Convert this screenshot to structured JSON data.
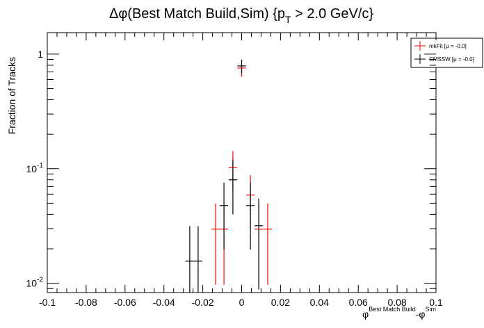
{
  "chart_data": {
    "type": "errorbar",
    "title": [
      "Δφ(Best Match Build,Sim) {p",
      "T",
      " > 2.0 GeV/c}"
    ],
    "x_label": [
      "φ",
      "Best Match Build",
      "-φ",
      "Sim"
    ],
    "y_label": "Fraction of Tracks",
    "xlim": [
      -0.1,
      0.1
    ],
    "xticks": [
      -0.1,
      -0.08,
      -0.06,
      -0.04,
      -0.02,
      0,
      0.02,
      0.04,
      0.06,
      0.08,
      0.1
    ],
    "ylim": [
      0.0083,
      1.54
    ],
    "yticks": [
      {
        "value": 0.01,
        "label": "10",
        "exponent": "-2"
      },
      {
        "value": 0.1,
        "label": "10",
        "exponent": "-1"
      },
      1
    ],
    "ylog": true,
    "legend": "top-right",
    "series": [
      {
        "name": "mkFit  [μ = -0.0]",
        "color": "#ff0000",
        "x": [
          -0.0134,
          -0.0091,
          -0.0045,
          0,
          0.0045,
          0.0088,
          0.0134
        ],
        "values": [
          0.0297,
          0.0297,
          0.103,
          0.756,
          0.0589,
          0.0297,
          0.0297
        ],
        "errors": [
          0.02,
          0.02,
          0.039,
          0.12,
          0.029,
          0.02,
          0.02
        ],
        "xerr": 0.0022
      },
      {
        "name": "CMSSW  [μ = -0.0]",
        "color": "#000000",
        "x": [
          -0.0267,
          -0.0224,
          -0.0091,
          -0.0045,
          0,
          0.0045,
          0.0088
        ],
        "values": [
          0.0156,
          0.0156,
          0.0477,
          0.08,
          0.789,
          0.0477,
          0.0318
        ],
        "errors": [
          0.016,
          0.016,
          0.028,
          0.04,
          0.105,
          0.028,
          0.023
        ],
        "xerr": 0.0022
      }
    ]
  }
}
